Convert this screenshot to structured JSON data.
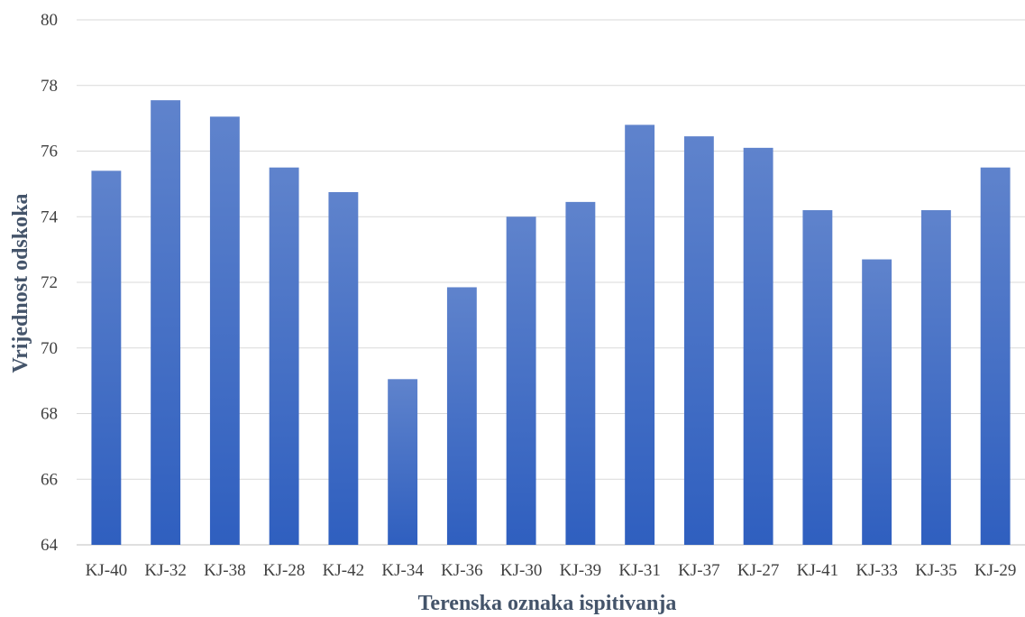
{
  "chart_data": {
    "type": "bar",
    "title": "",
    "xlabel": "Terenska oznaka ispitivanja",
    "ylabel": "Vrijednost odskoka",
    "categories": [
      "KJ-40",
      "KJ-32",
      "KJ-38",
      "KJ-28",
      "KJ-42",
      "KJ-34",
      "KJ-36",
      "KJ-30",
      "KJ-39",
      "KJ-31",
      "KJ-37",
      "KJ-27",
      "KJ-41",
      "KJ-33",
      "KJ-35",
      "KJ-29"
    ],
    "values": [
      75.4,
      77.55,
      77.05,
      75.5,
      74.75,
      69.05,
      71.85,
      74.0,
      74.45,
      76.8,
      76.45,
      76.1,
      74.2,
      72.7,
      74.2,
      75.5
    ],
    "ylim": [
      64,
      80
    ],
    "yticks": [
      "64",
      "66",
      "68",
      "70",
      "72",
      "74",
      "76",
      "78",
      "80"
    ],
    "grid": true,
    "legend": "none",
    "colors": {
      "bar_top": "#5f83cc",
      "bar_bottom": "#2f5fbf",
      "grid": "#d9d9d9"
    }
  }
}
